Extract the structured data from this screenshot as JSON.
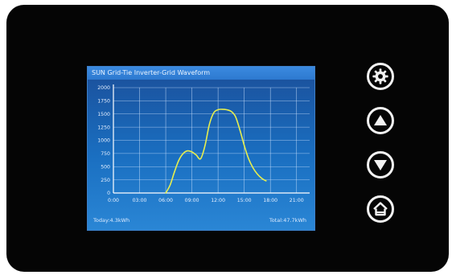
{
  "screen": {
    "title": "SUN Grid-Tie Inverter-Grid Waveform",
    "footer_left": "Today:4.3kWh",
    "footer_right": "Total:47.7kWh"
  },
  "buttons": [
    {
      "name": "settings-button",
      "icon": "gear-icon"
    },
    {
      "name": "up-button",
      "icon": "up-arrow-icon"
    },
    {
      "name": "down-button",
      "icon": "down-arrow-icon"
    },
    {
      "name": "home-button",
      "icon": "home-icon"
    }
  ],
  "colors": {
    "bezel": "#050505",
    "screen_top": "#1b4f9a",
    "screen_bottom": "#2a86d5",
    "line": "#e6ee4f",
    "grid": "#cfe4ff"
  },
  "chart_data": {
    "type": "line",
    "title": "",
    "xlabel": "",
    "ylabel": "",
    "x_ticks": [
      "0:00",
      "03:00",
      "06:00",
      "09:00",
      "12:00",
      "15:00",
      "18:00",
      "21:00"
    ],
    "y_ticks": [
      "0",
      "250",
      "500",
      "750",
      "1000",
      "1250",
      "1500",
      "1750",
      "2000"
    ],
    "xlim": [
      0,
      22.5
    ],
    "ylim": [
      0,
      2000
    ],
    "grid": true,
    "series": [
      {
        "x": [
          6.0,
          6.5,
          7.0,
          7.5,
          8.0,
          8.5,
          9.0,
          9.5,
          10.0,
          10.5,
          11.0,
          11.5,
          12.0,
          12.5,
          13.0,
          13.5,
          14.0,
          14.5,
          15.0,
          15.5,
          16.0,
          16.5,
          17.0,
          17.5
        ],
        "y": [
          0,
          150,
          400,
          620,
          750,
          800,
          780,
          720,
          650,
          900,
          1300,
          1520,
          1580,
          1590,
          1580,
          1550,
          1450,
          1200,
          900,
          650,
          480,
          360,
          280,
          230
        ]
      }
    ]
  }
}
